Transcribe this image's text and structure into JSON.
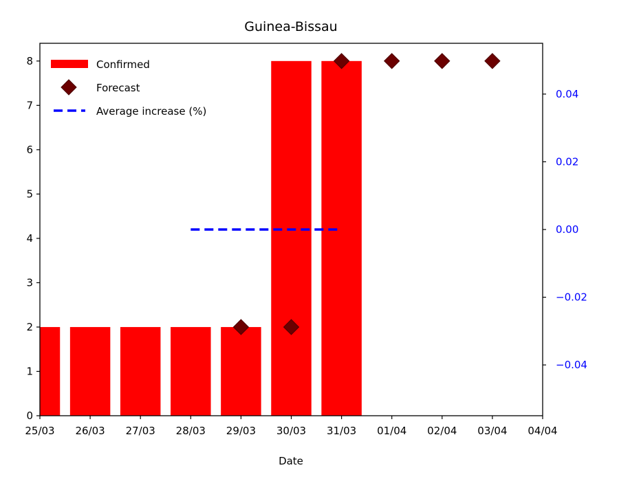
{
  "chart_data": {
    "type": "bar",
    "title": "Guinea-Bissau",
    "xlabel": "Date",
    "ylabel": "",
    "x_ticks": [
      "25/03",
      "26/03",
      "27/03",
      "28/03",
      "29/03",
      "30/03",
      "31/03",
      "01/04",
      "02/04",
      "03/04",
      "04/04"
    ],
    "xlim": [
      0,
      10
    ],
    "ylim": [
      0,
      8.4
    ],
    "y_ticks": [
      0,
      1,
      2,
      3,
      4,
      5,
      6,
      7,
      8
    ],
    "y2lim": [
      -0.055,
      0.055
    ],
    "y2_ticks": [
      -0.04,
      -0.02,
      0.0,
      0.02,
      0.04
    ],
    "y2_tick_labels": [
      "−0.04",
      "−0.02",
      "0.00",
      "0.02",
      "0.04"
    ],
    "series": [
      {
        "name": "Confirmed",
        "kind": "bar",
        "color": "#ff0000",
        "x": [
          "25/03",
          "26/03",
          "27/03",
          "28/03",
          "29/03",
          "30/03",
          "31/03"
        ],
        "values": [
          2,
          2,
          2,
          2,
          2,
          8,
          8
        ]
      },
      {
        "name": "Forecast",
        "kind": "scatter",
        "marker": "diamond",
        "color": "#6b0000",
        "x": [
          "29/03",
          "30/03",
          "31/03",
          "01/04",
          "02/04",
          "03/04"
        ],
        "values": [
          2,
          2,
          8,
          8,
          8,
          8
        ]
      },
      {
        "name": "Average increase (%)",
        "kind": "line",
        "style": "dashed",
        "axis": "right",
        "color": "#0000ff",
        "x": [
          "28/03",
          "31/03"
        ],
        "values": [
          0.0,
          0.0
        ]
      }
    ],
    "legend": {
      "position": "top-left",
      "entries": [
        "Confirmed",
        "Forecast",
        "Average increase (%)"
      ]
    },
    "grid": false
  }
}
